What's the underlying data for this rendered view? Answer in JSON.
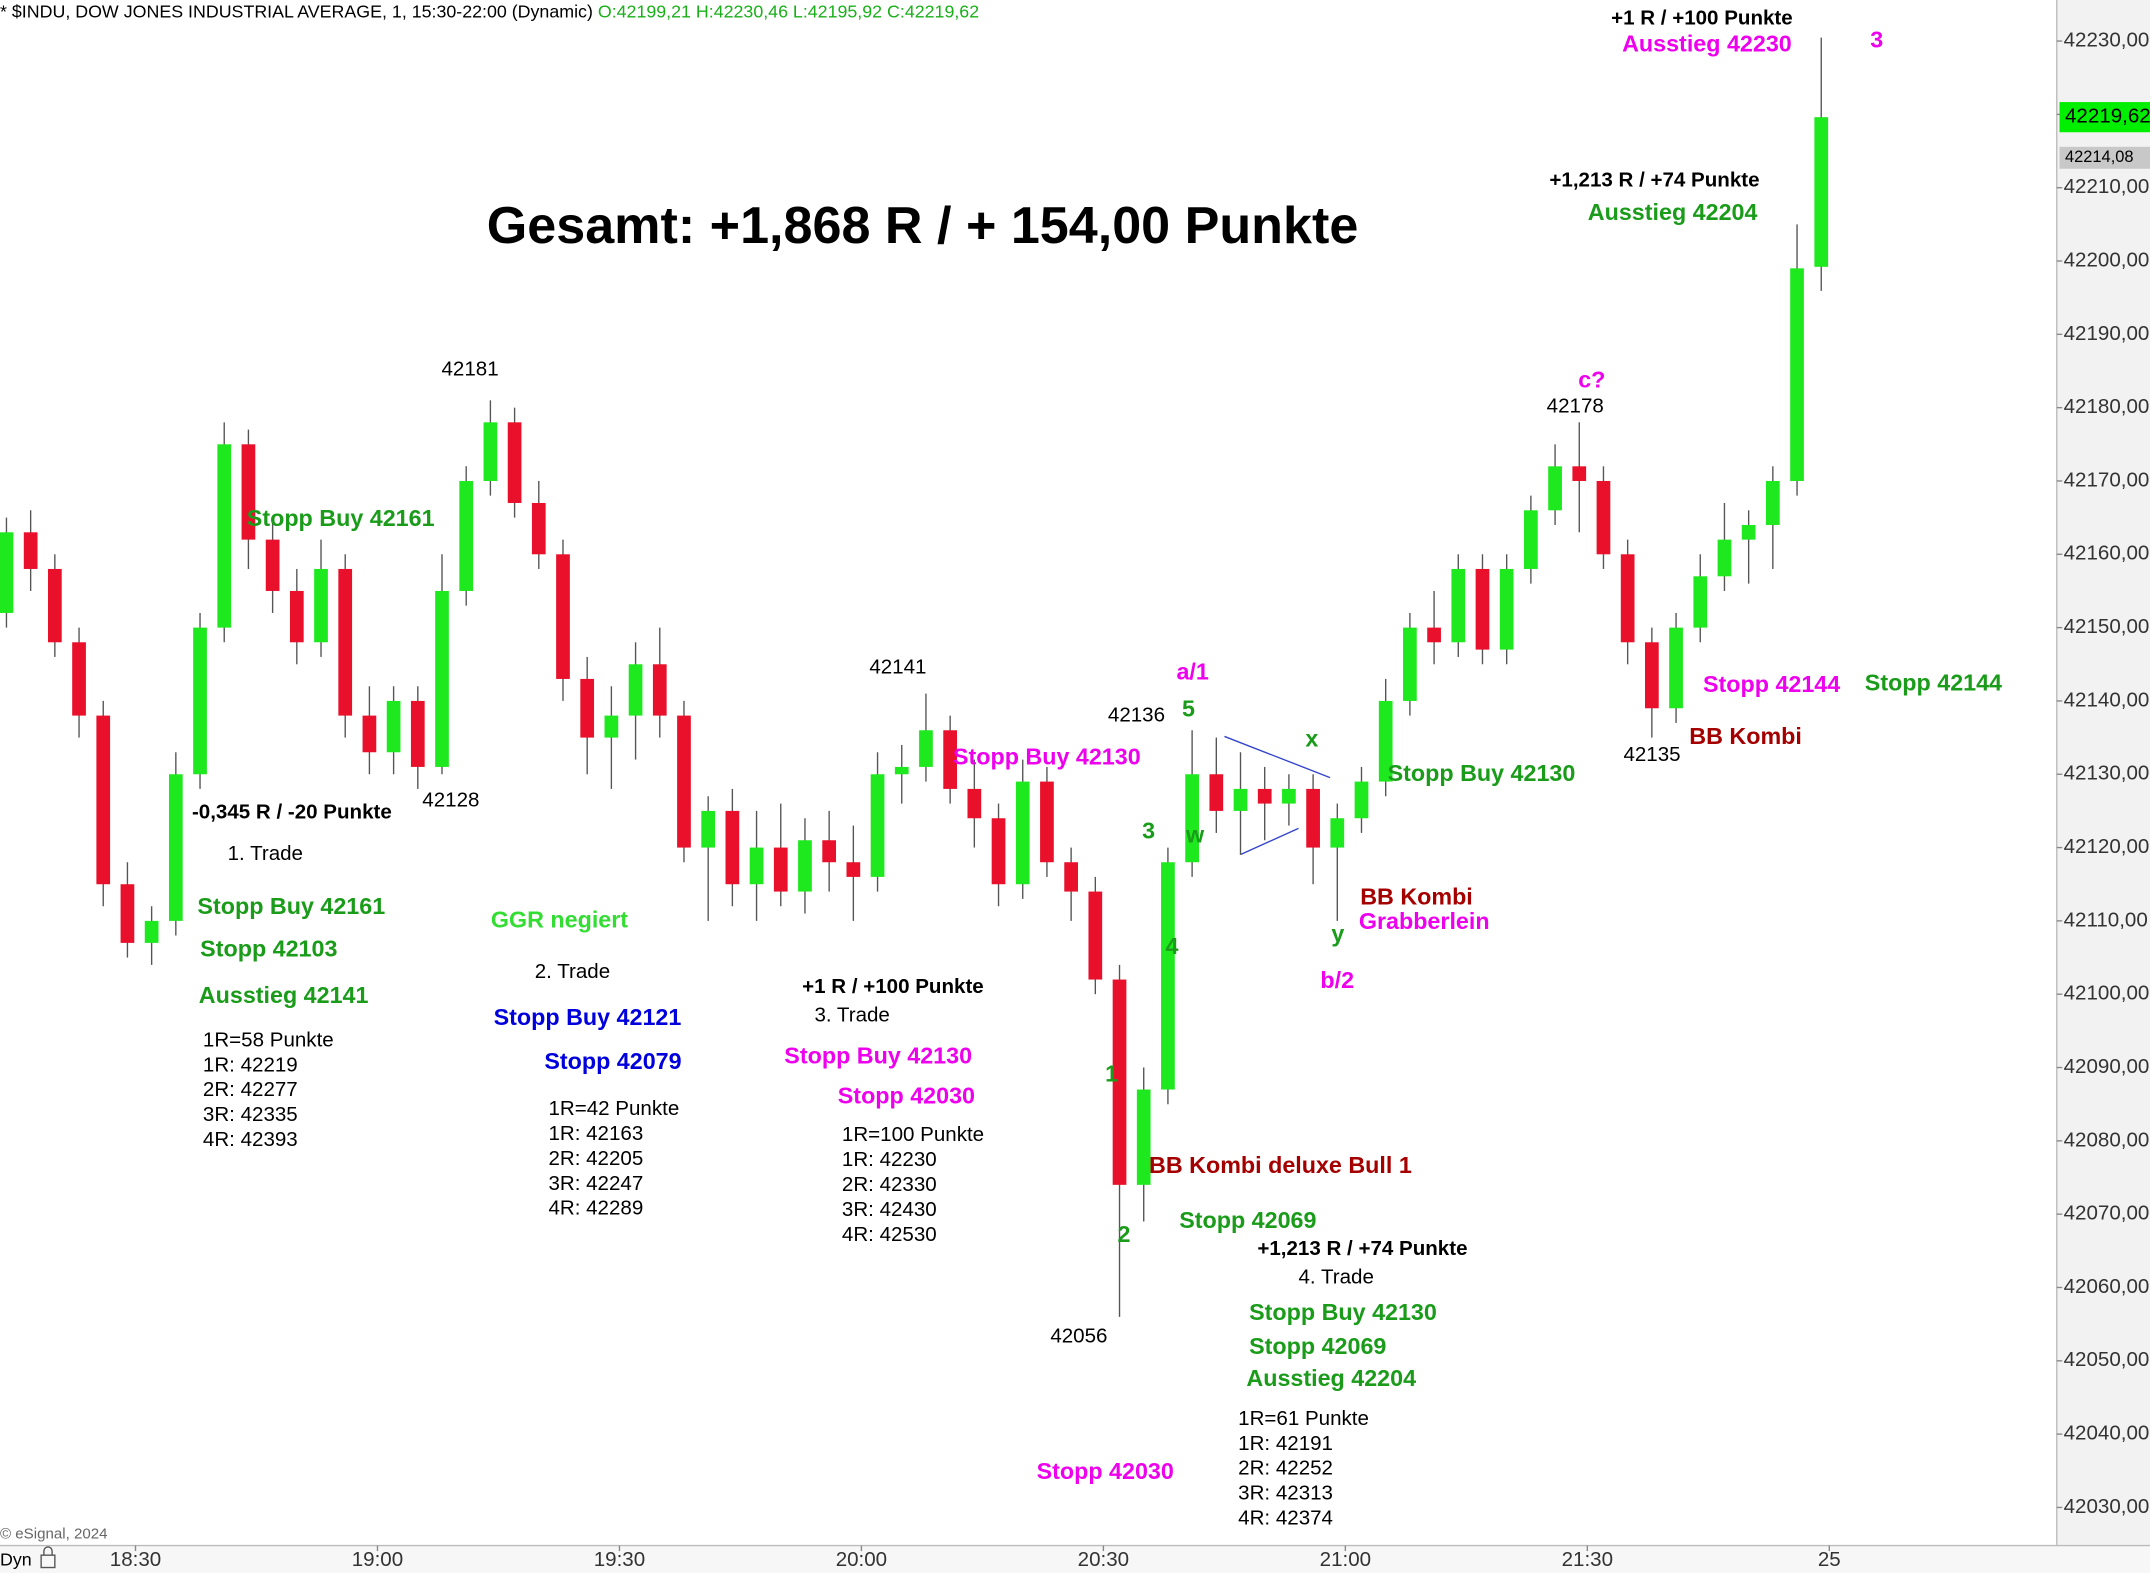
{
  "header": {
    "symbol": "* $INDU, DOW JONES INDUSTRIAL AVERAGE, 1, 15:30-22:00 (Dynamic)",
    "ohlc": "O:42199,21 H:42230,46 L:42195,92 C:42219,62"
  },
  "footer": {
    "copyright": "© eSignal, 2024",
    "mode": "Dyn"
  },
  "chart_data": {
    "type": "candlestick",
    "x": [
      1094,
      1097,
      1100,
      1103,
      1106,
      1109,
      1112,
      1115,
      1118,
      1121,
      1124,
      1127,
      1130,
      1133,
      1136,
      1139,
      1142,
      1145,
      1148,
      1151,
      1154,
      1157,
      1160,
      1163,
      1166,
      1169,
      1172,
      1175,
      1178,
      1181,
      1184,
      1187,
      1190,
      1193,
      1196,
      1199,
      1202,
      1205,
      1208,
      1211,
      1214,
      1217,
      1220,
      1223,
      1226,
      1229,
      1232,
      1235,
      1238,
      1241,
      1244,
      1247,
      1250,
      1253,
      1256,
      1259,
      1262,
      1265,
      1268,
      1271,
      1274,
      1277,
      1280,
      1283,
      1286,
      1289,
      1292,
      1295,
      1298,
      1301,
      1304,
      1307,
      1310,
      1313,
      1316,
      1319
    ],
    "open": [
      42152,
      42163,
      42158,
      42148,
      42138,
      42115,
      42107,
      42110,
      42130,
      42150,
      42175,
      42162,
      42155,
      42148,
      42158,
      42138,
      42133,
      42140,
      42131,
      42155,
      42170,
      42178,
      42167,
      42160,
      42143,
      42135,
      42138,
      42145,
      42138,
      42120,
      42125,
      42115,
      42120,
      42114,
      42121,
      42118,
      42116,
      42130,
      42131,
      42136,
      42128,
      42124,
      42115,
      42129,
      42118,
      42114,
      42102,
      42074,
      42087,
      42118,
      42130,
      42125,
      42128,
      42126,
      42128,
      42120,
      42124,
      42129,
      42140,
      42150,
      42148,
      42158,
      42147,
      42158,
      42166,
      42172,
      42170,
      42160,
      42148,
      42139,
      42150,
      42157,
      42162,
      42164,
      42170,
      42199.21
    ],
    "high": [
      42165,
      42166,
      42160,
      42150,
      42140,
      42118,
      42112,
      42133,
      42152,
      42178,
      42177,
      42165,
      42158,
      42162,
      42160,
      42142,
      42142,
      42142,
      42160,
      42172,
      42181,
      42180,
      42170,
      42162,
      42146,
      42142,
      42148,
      42150,
      42140,
      42127,
      42128,
      42125,
      42126,
      42124,
      42125,
      42123,
      42133,
      42134,
      42141,
      42138,
      42132,
      42126,
      42132,
      42131,
      42120,
      42116,
      42104,
      42090,
      42120,
      42136,
      42135,
      42133,
      42131,
      42130,
      42130,
      42126,
      42131,
      42143,
      42152,
      42155,
      42160,
      42160,
      42160,
      42168,
      42175,
      42178,
      42172,
      42162,
      42150,
      42152,
      42160,
      42167,
      42166,
      42172,
      42205,
      42230.46
    ],
    "low": [
      42150,
      42155,
      42146,
      42135,
      42112,
      42105,
      42104,
      42108,
      42128,
      42148,
      42158,
      42152,
      42145,
      42146,
      42135,
      42130,
      42130,
      42128,
      42130,
      42153,
      42168,
      42165,
      42158,
      42140,
      42130,
      42128,
      42132,
      42135,
      42118,
      42110,
      42112,
      42110,
      42112,
      42111,
      42114,
      42110,
      42114,
      42126,
      42129,
      42126,
      42120,
      42112,
      42113,
      42116,
      42110,
      42100,
      42056,
      42069,
      42085,
      42116,
      42122,
      42119,
      42121,
      42123,
      42115,
      42110,
      42122,
      42127,
      42138,
      42145,
      42146,
      42145,
      42145,
      42156,
      42164,
      42163,
      42158,
      42145,
      42135,
      42137,
      42148,
      42155,
      42156,
      42158,
      42168,
      42195.92
    ],
    "close": [
      42163,
      42158,
      42148,
      42138,
      42115,
      42107,
      42110,
      42130,
      42150,
      42175,
      42162,
      42155,
      42148,
      42158,
      42138,
      42133,
      42140,
      42131,
      42155,
      42170,
      42178,
      42167,
      42160,
      42143,
      42135,
      42138,
      42145,
      42138,
      42120,
      42125,
      42115,
      42120,
      42114,
      42121,
      42118,
      42116,
      42130,
      42131,
      42136,
      42128,
      42124,
      42115,
      42129,
      42118,
      42114,
      42102,
      42074,
      42087,
      42118,
      42130,
      42125,
      42128,
      42126,
      42128,
      42120,
      42124,
      42129,
      42140,
      42150,
      42148,
      42158,
      42147,
      42158,
      42166,
      42172,
      42170,
      42160,
      42148,
      42139,
      42150,
      42157,
      42162,
      42164,
      42170,
      42199,
      42219.62
    ],
    "up_color": "#1ee81e",
    "down_color": "#e8102a",
    "xlim": [
      1093.2,
      1348.2
    ],
    "xticks": [
      {
        "value": 1110,
        "label": "18:30"
      },
      {
        "value": 1140,
        "label": "19:00"
      },
      {
        "value": 1170,
        "label": "19:30"
      },
      {
        "value": 1200,
        "label": "20:00"
      },
      {
        "value": 1230,
        "label": "20:30"
      },
      {
        "value": 1260,
        "label": "21:00"
      },
      {
        "value": 1290,
        "label": "21:30"
      },
      {
        "value": 1320,
        "label": "25"
      }
    ],
    "ylim": [
      42024.8,
      42235.6
    ],
    "yticks": [
      {
        "value": 42030,
        "label": "42030,00"
      },
      {
        "value": 42040,
        "label": "42040,00"
      },
      {
        "value": 42050,
        "label": "42050,00"
      },
      {
        "value": 42060,
        "label": "42060,00"
      },
      {
        "value": 42070,
        "label": "42070,00"
      },
      {
        "value": 42080,
        "label": "42080,00"
      },
      {
        "value": 42090,
        "label": "42090,00"
      },
      {
        "value": 42100,
        "label": "42100,00"
      },
      {
        "value": 42110,
        "label": "42110,00"
      },
      {
        "value": 42120,
        "label": "42120,00"
      },
      {
        "value": 42130,
        "label": "42130,00"
      },
      {
        "value": 42140,
        "label": "42140,00"
      },
      {
        "value": 42150,
        "label": "42150,00"
      },
      {
        "value": 42160,
        "label": "42160,00"
      },
      {
        "value": 42170,
        "label": "42170,00"
      },
      {
        "value": 42180,
        "label": "42180,00"
      },
      {
        "value": 42190,
        "label": "42190,00"
      },
      {
        "value": 42200,
        "label": "42200,00"
      },
      {
        "value": 42210,
        "label": "42210,00"
      },
      {
        "value": 42220,
        "label": "42220,00"
      },
      {
        "value": 42230,
        "label": "42230,00"
      }
    ],
    "price_tags": [
      {
        "value": 42219.62,
        "label": "42219,62",
        "color": "#00ee00"
      },
      {
        "value": 42214.08,
        "label": "42214,08",
        "color": "#c8c8c8"
      }
    ],
    "annotations": [
      "Gesamt: +1,868 R / + 154,00 Punkte",
      "+1 R / +100 Punkte",
      "Ausstieg 42230",
      "3",
      "+1,213 R / +74 Punkte",
      "Ausstieg 42204",
      "42181",
      "c?",
      "42178",
      "Stopp Buy 42161",
      "42141",
      "a/1",
      "Stopp 42144",
      "Stopp 42144",
      "5",
      "42136",
      "BB Kombi",
      "x",
      "Stopp Buy 42130",
      "42135",
      "Stopp Buy 42130",
      "-0,345 R / -20 Punkte",
      "42128",
      "3",
      "w",
      "1. Trade",
      "BB Kombi",
      "Stopp Buy 42161",
      "GGR negiert",
      "Grabberlein",
      "y",
      "4",
      "Stopp 42103",
      "2. Trade",
      "b/2",
      "+1 R / +100 Punkte",
      "Ausstieg 42141",
      "3. Trade",
      "Stopp Buy 42121",
      "Stopp Buy 42130",
      "Stopp 42079",
      "1",
      "Stopp 42030",
      "BB Kombi deluxe Bull 1",
      "Stopp 42069",
      "2",
      "+1,213 R / +74 Punkte",
      "4. Trade",
      "Stopp Buy 42130",
      "42056",
      "Stopp 42069",
      "Ausstieg 42204",
      "Stopp 42030"
    ],
    "trade_levels": [
      [
        "1R=58 Punkte",
        "1R: 42219",
        "2R: 42277",
        "3R: 42335",
        "4R: 42393"
      ],
      [
        "1R=42 Punkte",
        "1R: 42163",
        "2R: 42205",
        "3R: 42247",
        "4R: 42289"
      ],
      [
        "1R=100 Punkte",
        "1R: 42230",
        "2R: 42330",
        "3R: 42430",
        "4R: 42530"
      ],
      [
        "1R=61 Punkte",
        "1R: 42191",
        "2R: 42252",
        "3R: 42313",
        "4R: 42374"
      ]
    ]
  }
}
